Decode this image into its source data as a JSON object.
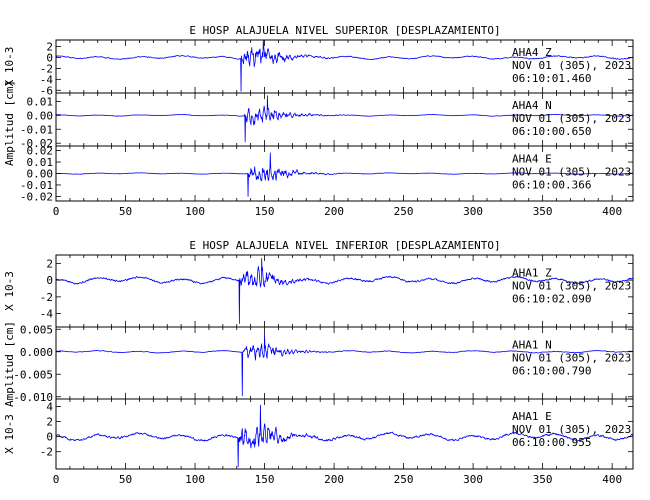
{
  "chart_data": [
    {
      "type": "line",
      "title": "E HOSP ALAJUELA NIVEL SUPERIOR [DESPLAZAMIENTO]",
      "ylabel": "Amplitud [cm]",
      "xlim": [
        0,
        415
      ],
      "xticks": [
        0,
        50,
        100,
        150,
        200,
        250,
        300,
        350,
        400
      ],
      "panels": [
        {
          "station": "AHA4",
          "component": "Z",
          "label": "AHA4   Z",
          "date": "NOV 01 (305), 2023",
          "time": "06:10:01.460",
          "multiplier": "X 10-3",
          "ylim": [
            -6.5,
            3.2
          ],
          "yticks": [
            2,
            0,
            -2,
            -4,
            -6
          ],
          "ytick_labels": [
            "2",
            "0",
            "-2",
            "-4",
            "-6"
          ],
          "noise": 0.35,
          "peak": 4.8,
          "min": -6.2,
          "onset": 132,
          "seed": 11
        },
        {
          "station": "AHA4",
          "component": "N",
          "label": "AHA4   N",
          "date": "NOV 01 (305), 2023",
          "time": "06:10:00.650",
          "multiplier": "",
          "ylim": [
            -0.022,
            0.016
          ],
          "yticks": [
            0.01,
            0.0,
            -0.01,
            -0.02
          ],
          "ytick_labels": [
            "0.01",
            "0.00",
            "-0.01",
            "-0.02"
          ],
          "noise": 0.0006,
          "peak": 0.014,
          "min": -0.019,
          "onset": 135,
          "seed": 23
        },
        {
          "station": "AHA4",
          "component": "E",
          "label": "AHA4   E",
          "date": "NOV 01 (305), 2023",
          "time": "06:10:00.366",
          "multiplier": "",
          "ylim": [
            -0.024,
            0.024
          ],
          "yticks": [
            0.02,
            0.01,
            0.0,
            -0.01,
            -0.02
          ],
          "ytick_labels": [
            "0.02",
            "0.01",
            "0.00",
            "-0.01",
            "-0.02"
          ],
          "noise": 0.0006,
          "peak": 0.018,
          "min": -0.02,
          "onset": 137,
          "seed": 37
        }
      ]
    },
    {
      "type": "line",
      "title": "E HOSP ALAJUELA NIVEL INFERIOR [DESPLAZAMIENTO]",
      "ylabel": "Amplitud [cm]",
      "xlim": [
        0,
        415
      ],
      "xticks": [
        0,
        50,
        100,
        150,
        200,
        250,
        300,
        350,
        400
      ],
      "panels": [
        {
          "station": "AHA1",
          "component": "Z",
          "label": "AHA1   Z",
          "date": "NOV 01 (305), 2023",
          "time": "06:10:02.090",
          "multiplier": "X 10-3",
          "ylim": [
            -5.6,
            3.0
          ],
          "yticks": [
            2,
            0,
            -2,
            -4
          ],
          "ytick_labels": [
            "2",
            "0",
            "-2",
            "-4"
          ],
          "noise": 0.45,
          "peak": 2.6,
          "min": -5.2,
          "onset": 131,
          "seed": 5
        },
        {
          "station": "AHA1",
          "component": "N",
          "label": "AHA1   N",
          "date": "NOV 01 (305), 2023",
          "time": "06:10:00.790",
          "multiplier": "",
          "ylim": [
            -0.0105,
            0.0055
          ],
          "yticks": [
            0.005,
            0.0,
            -0.005,
            -0.01
          ],
          "ytick_labels": [
            "0.005",
            "0.000",
            "-0.005",
            "-0.010"
          ],
          "noise": 0.00028,
          "peak": 0.0042,
          "min": -0.0098,
          "onset": 133,
          "seed": 41
        },
        {
          "station": "AHA1",
          "component": "E",
          "label": "AHA1   E",
          "date": "NOV 01 (305), 2023",
          "time": "06:10:00.955",
          "multiplier": "X 10-3",
          "ylim": [
            -4.3,
            5.0
          ],
          "yticks": [
            4,
            2,
            0,
            -2
          ],
          "ytick_labels": [
            "4",
            "2",
            "0",
            "-2"
          ],
          "noise": 0.55,
          "peak": 4.2,
          "min": -4.0,
          "onset": 130,
          "seed": 59
        }
      ]
    }
  ]
}
